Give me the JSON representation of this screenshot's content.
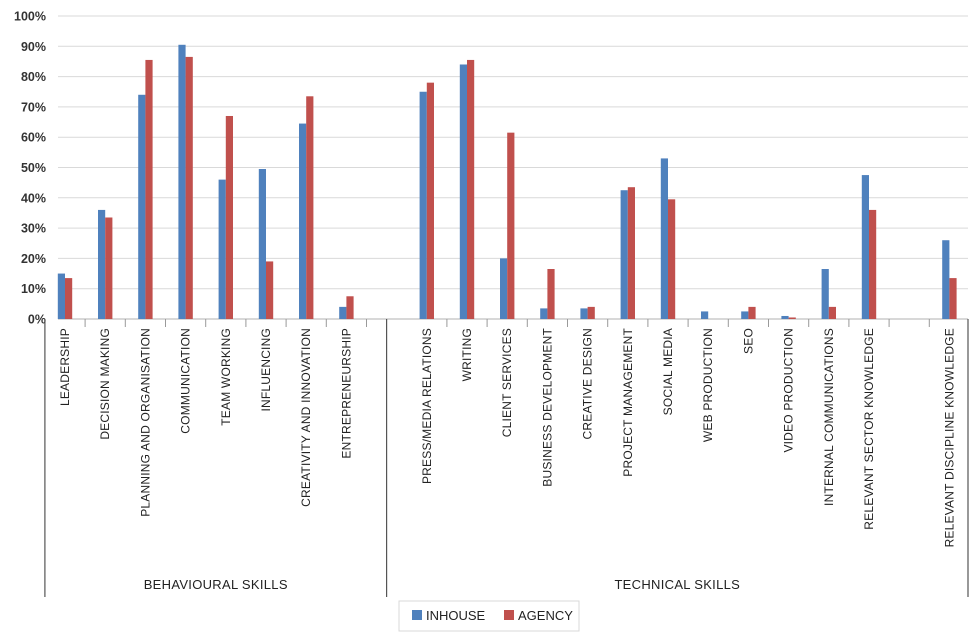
{
  "chart_data": {
    "type": "bar",
    "y_tick_labels": [
      "0%",
      "10%",
      "20%",
      "30%",
      "40%",
      "50%",
      "60%",
      "70%",
      "80%",
      "90%",
      "100%"
    ],
    "ylim": [
      0,
      100
    ],
    "grid": true,
    "legend_position": "bottom",
    "categories": [
      "LEADERSHIP",
      "DECISION MAKING",
      "PLANNING AND ORGANISATION",
      "COMMUNICATION",
      "TEAM WORKING",
      "INFLUENCING",
      "CREATIVITY AND INNOVATION",
      "ENTREPRENEURSHIP",
      "",
      "PRESS/MEDIA RELATIONS",
      "WRITING",
      "CLIENT SERVICES",
      "BUSINESS DEVELOPMENT",
      "CREATIVE DESIGN",
      "PROJECT MANAGEMENT",
      "SOCIAL MEDIA",
      "WEB PRODUCTION",
      "SEO",
      "VIDEO PRODUCTION",
      "INTERNAL COMMUNICATIONS",
      "RELEVANT SECTOR KNOWLEDGE",
      "",
      "RELEVANT DISCIPLINE KNOWLEDGE"
    ],
    "series": [
      {
        "name": "INHOUSE",
        "color": "#4F81BD",
        "values": [
          15,
          36,
          74,
          90.5,
          46,
          49.5,
          64.5,
          4,
          null,
          75,
          84,
          20,
          3.5,
          3.5,
          42.5,
          53,
          2.5,
          2.5,
          1,
          16.5,
          47.5,
          null,
          26
        ]
      },
      {
        "name": "AGENCY",
        "color": "#C0504D",
        "values": [
          13.5,
          33.5,
          85.5,
          86.5,
          67,
          19,
          73.5,
          7.5,
          null,
          78,
          85.5,
          61.5,
          16.5,
          4,
          43.5,
          39.5,
          0,
          4,
          0.5,
          4,
          36,
          null,
          13.5
        ]
      }
    ],
    "groups": [
      {
        "label": "BEHAVIOURAL SKILLS",
        "from": 0,
        "to": 8
      },
      {
        "label": "TECHNICAL SKILLS",
        "from": 9,
        "to": 22
      }
    ]
  }
}
